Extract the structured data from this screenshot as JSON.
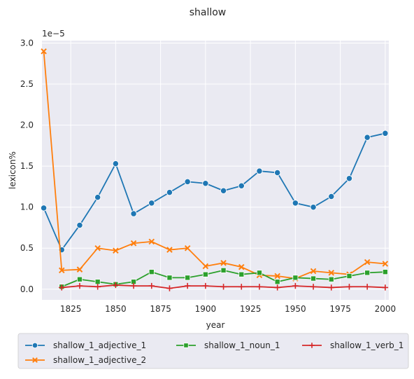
{
  "chart_data": {
    "type": "line",
    "title": "shallow",
    "xlabel": "year",
    "ylabel": "lexicon%",
    "offset_label": "1e−5",
    "xlim": [
      1809,
      2002
    ],
    "ylim": [
      -0.13,
      3.03
    ],
    "x_ticks": [
      1825,
      1850,
      1875,
      1900,
      1925,
      1950,
      1975,
      2000
    ],
    "y_ticks": [
      0.0,
      0.5,
      1.0,
      1.5,
      2.0,
      2.5,
      3.0
    ],
    "y_tick_labels": [
      "0.0",
      "0.5",
      "1.0",
      "1.5",
      "2.0",
      "2.5",
      "3.0"
    ],
    "grid": true,
    "legend_position": "below",
    "series": [
      {
        "name": "shallow_1_adjective_1",
        "color": "#1f77b4",
        "marker": "circle",
        "x": [
          1810,
          1820,
          1830,
          1840,
          1850,
          1860,
          1870,
          1880,
          1890,
          1900,
          1910,
          1920,
          1930,
          1940,
          1950,
          1960,
          1970,
          1980,
          1990,
          2000
        ],
        "y": [
          0.99,
          0.48,
          0.78,
          1.12,
          1.53,
          0.92,
          1.05,
          1.18,
          1.31,
          1.29,
          1.2,
          1.26,
          1.44,
          1.42,
          1.05,
          1.0,
          1.13,
          1.35,
          1.85,
          1.9
        ]
      },
      {
        "name": "shallow_1_adjective_2",
        "color": "#ff7f0e",
        "marker": "x",
        "x": [
          1810,
          1820,
          1830,
          1840,
          1850,
          1860,
          1870,
          1880,
          1890,
          1900,
          1910,
          1920,
          1930,
          1940,
          1950,
          1960,
          1970,
          1980,
          1990,
          2000
        ],
        "y": [
          2.9,
          0.23,
          0.24,
          0.5,
          0.47,
          0.56,
          0.58,
          0.48,
          0.5,
          0.28,
          0.32,
          0.27,
          0.17,
          0.16,
          0.13,
          0.22,
          0.2,
          0.18,
          0.33,
          0.31
        ]
      },
      {
        "name": "shallow_1_noun_1",
        "color": "#2ca02c",
        "marker": "square",
        "x": [
          1820,
          1830,
          1840,
          1850,
          1860,
          1870,
          1880,
          1890,
          1900,
          1910,
          1920,
          1930,
          1940,
          1950,
          1960,
          1970,
          1980,
          1990,
          2000
        ],
        "y": [
          0.03,
          0.12,
          0.09,
          0.06,
          0.09,
          0.21,
          0.14,
          0.14,
          0.18,
          0.23,
          0.18,
          0.2,
          0.09,
          0.14,
          0.13,
          0.12,
          0.16,
          0.2,
          0.21
        ]
      },
      {
        "name": "shallow_1_verb_1",
        "color": "#d62728",
        "marker": "plus",
        "x": [
          1820,
          1830,
          1840,
          1850,
          1860,
          1870,
          1880,
          1890,
          1900,
          1910,
          1920,
          1930,
          1940,
          1950,
          1960,
          1970,
          1980,
          1990,
          2000
        ],
        "y": [
          0.02,
          0.04,
          0.03,
          0.05,
          0.04,
          0.04,
          0.01,
          0.04,
          0.04,
          0.03,
          0.03,
          0.03,
          0.02,
          0.04,
          0.03,
          0.02,
          0.03,
          0.03,
          0.02
        ]
      }
    ]
  }
}
